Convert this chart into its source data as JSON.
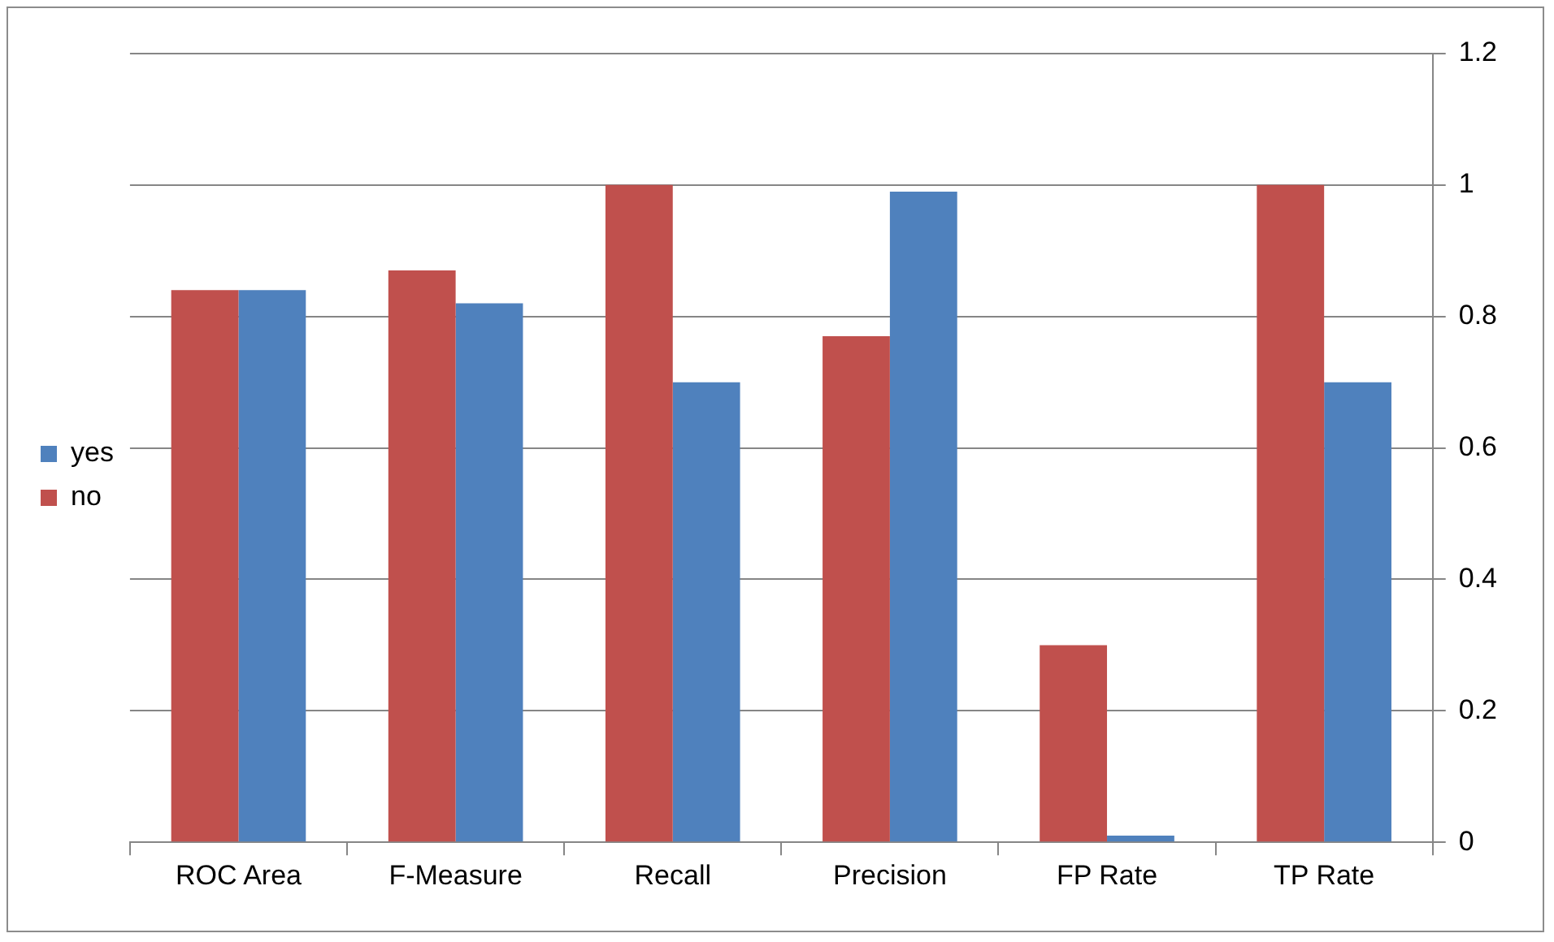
{
  "chart_data": {
    "type": "bar",
    "categories": [
      "ROC Area",
      "F-Measure",
      "Recall",
      "Precision",
      "FP Rate",
      "TP Rate"
    ],
    "series": [
      {
        "name": "no",
        "color": "#c0504d",
        "values": [
          0.84,
          0.87,
          1.0,
          0.77,
          0.3,
          1.0
        ]
      },
      {
        "name": "yes",
        "color": "#4f81bd",
        "values": [
          0.84,
          0.82,
          0.7,
          0.99,
          0.01,
          0.7
        ]
      }
    ],
    "ylim": [
      0,
      1.2
    ],
    "yticks": [
      0,
      0.2,
      0.4,
      0.6,
      0.8,
      1,
      1.2
    ],
    "grid": "y",
    "legend": "left"
  }
}
